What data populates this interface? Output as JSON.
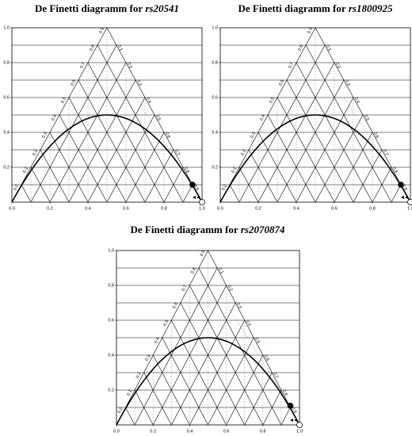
{
  "chart_data": [
    {
      "type": "de-finetti",
      "title": "De Finetti diagramm for",
      "snp": "rs20541",
      "xlim": [
        0,
        1
      ],
      "ylim": [
        0,
        1
      ],
      "xticks": [
        {
          "value": 0,
          "label": "0.0"
        },
        0.2,
        0.4,
        0.6,
        0.8,
        {
          "value": 1,
          "label": "1.0"
        }
      ],
      "yticks": [
        0.2,
        0.4,
        0.6,
        0.8,
        {
          "value": 1,
          "label": "1.0"
        }
      ],
      "edge_ticks": [
        {
          "value": 0,
          "label": "0.0"
        },
        0.1,
        0.2,
        0.3,
        0.4,
        0.5,
        0.6,
        0.7,
        0.8,
        0.9
      ],
      "point_x": 0.95,
      "point_y": 0.1
    },
    {
      "type": "de-finetti",
      "title": "De Finetti diagramm for",
      "snp": "rs1800925",
      "xlim": [
        0,
        1
      ],
      "ylim": [
        0,
        1
      ],
      "xticks": [
        {
          "value": 0,
          "label": "0.0"
        },
        0.2,
        0.4,
        0.6,
        0.8,
        {
          "value": 1,
          "label": "1.0"
        }
      ],
      "yticks": [
        0.2,
        0.4,
        0.6,
        0.8,
        {
          "value": 1,
          "label": "1.0"
        }
      ],
      "edge_ticks": [
        {
          "value": 0,
          "label": "0.0"
        },
        0.1,
        0.2,
        0.3,
        0.4,
        0.5,
        0.6,
        0.7,
        0.8,
        0.9
      ],
      "point_x": 0.95,
      "point_y": 0.1
    },
    {
      "type": "de-finetti",
      "title": "De Finetti diagramm for",
      "snp": "rs2070874",
      "xlim": [
        0,
        1
      ],
      "ylim": [
        0,
        1
      ],
      "xticks": [
        {
          "value": 0,
          "label": "0.0"
        },
        0.2,
        0.4,
        0.6,
        0.8,
        {
          "value": 1,
          "label": "1.0"
        }
      ],
      "yticks": [
        0.2,
        0.4,
        0.6,
        0.8,
        {
          "value": 1,
          "label": "1.0"
        }
      ],
      "edge_ticks": [
        {
          "value": 0,
          "label": "0.0"
        },
        0.1,
        0.2,
        0.3,
        0.4,
        0.5,
        0.6,
        0.7,
        0.8,
        0.9
      ],
      "point_x": 0.95,
      "point_y": 0.11
    }
  ]
}
